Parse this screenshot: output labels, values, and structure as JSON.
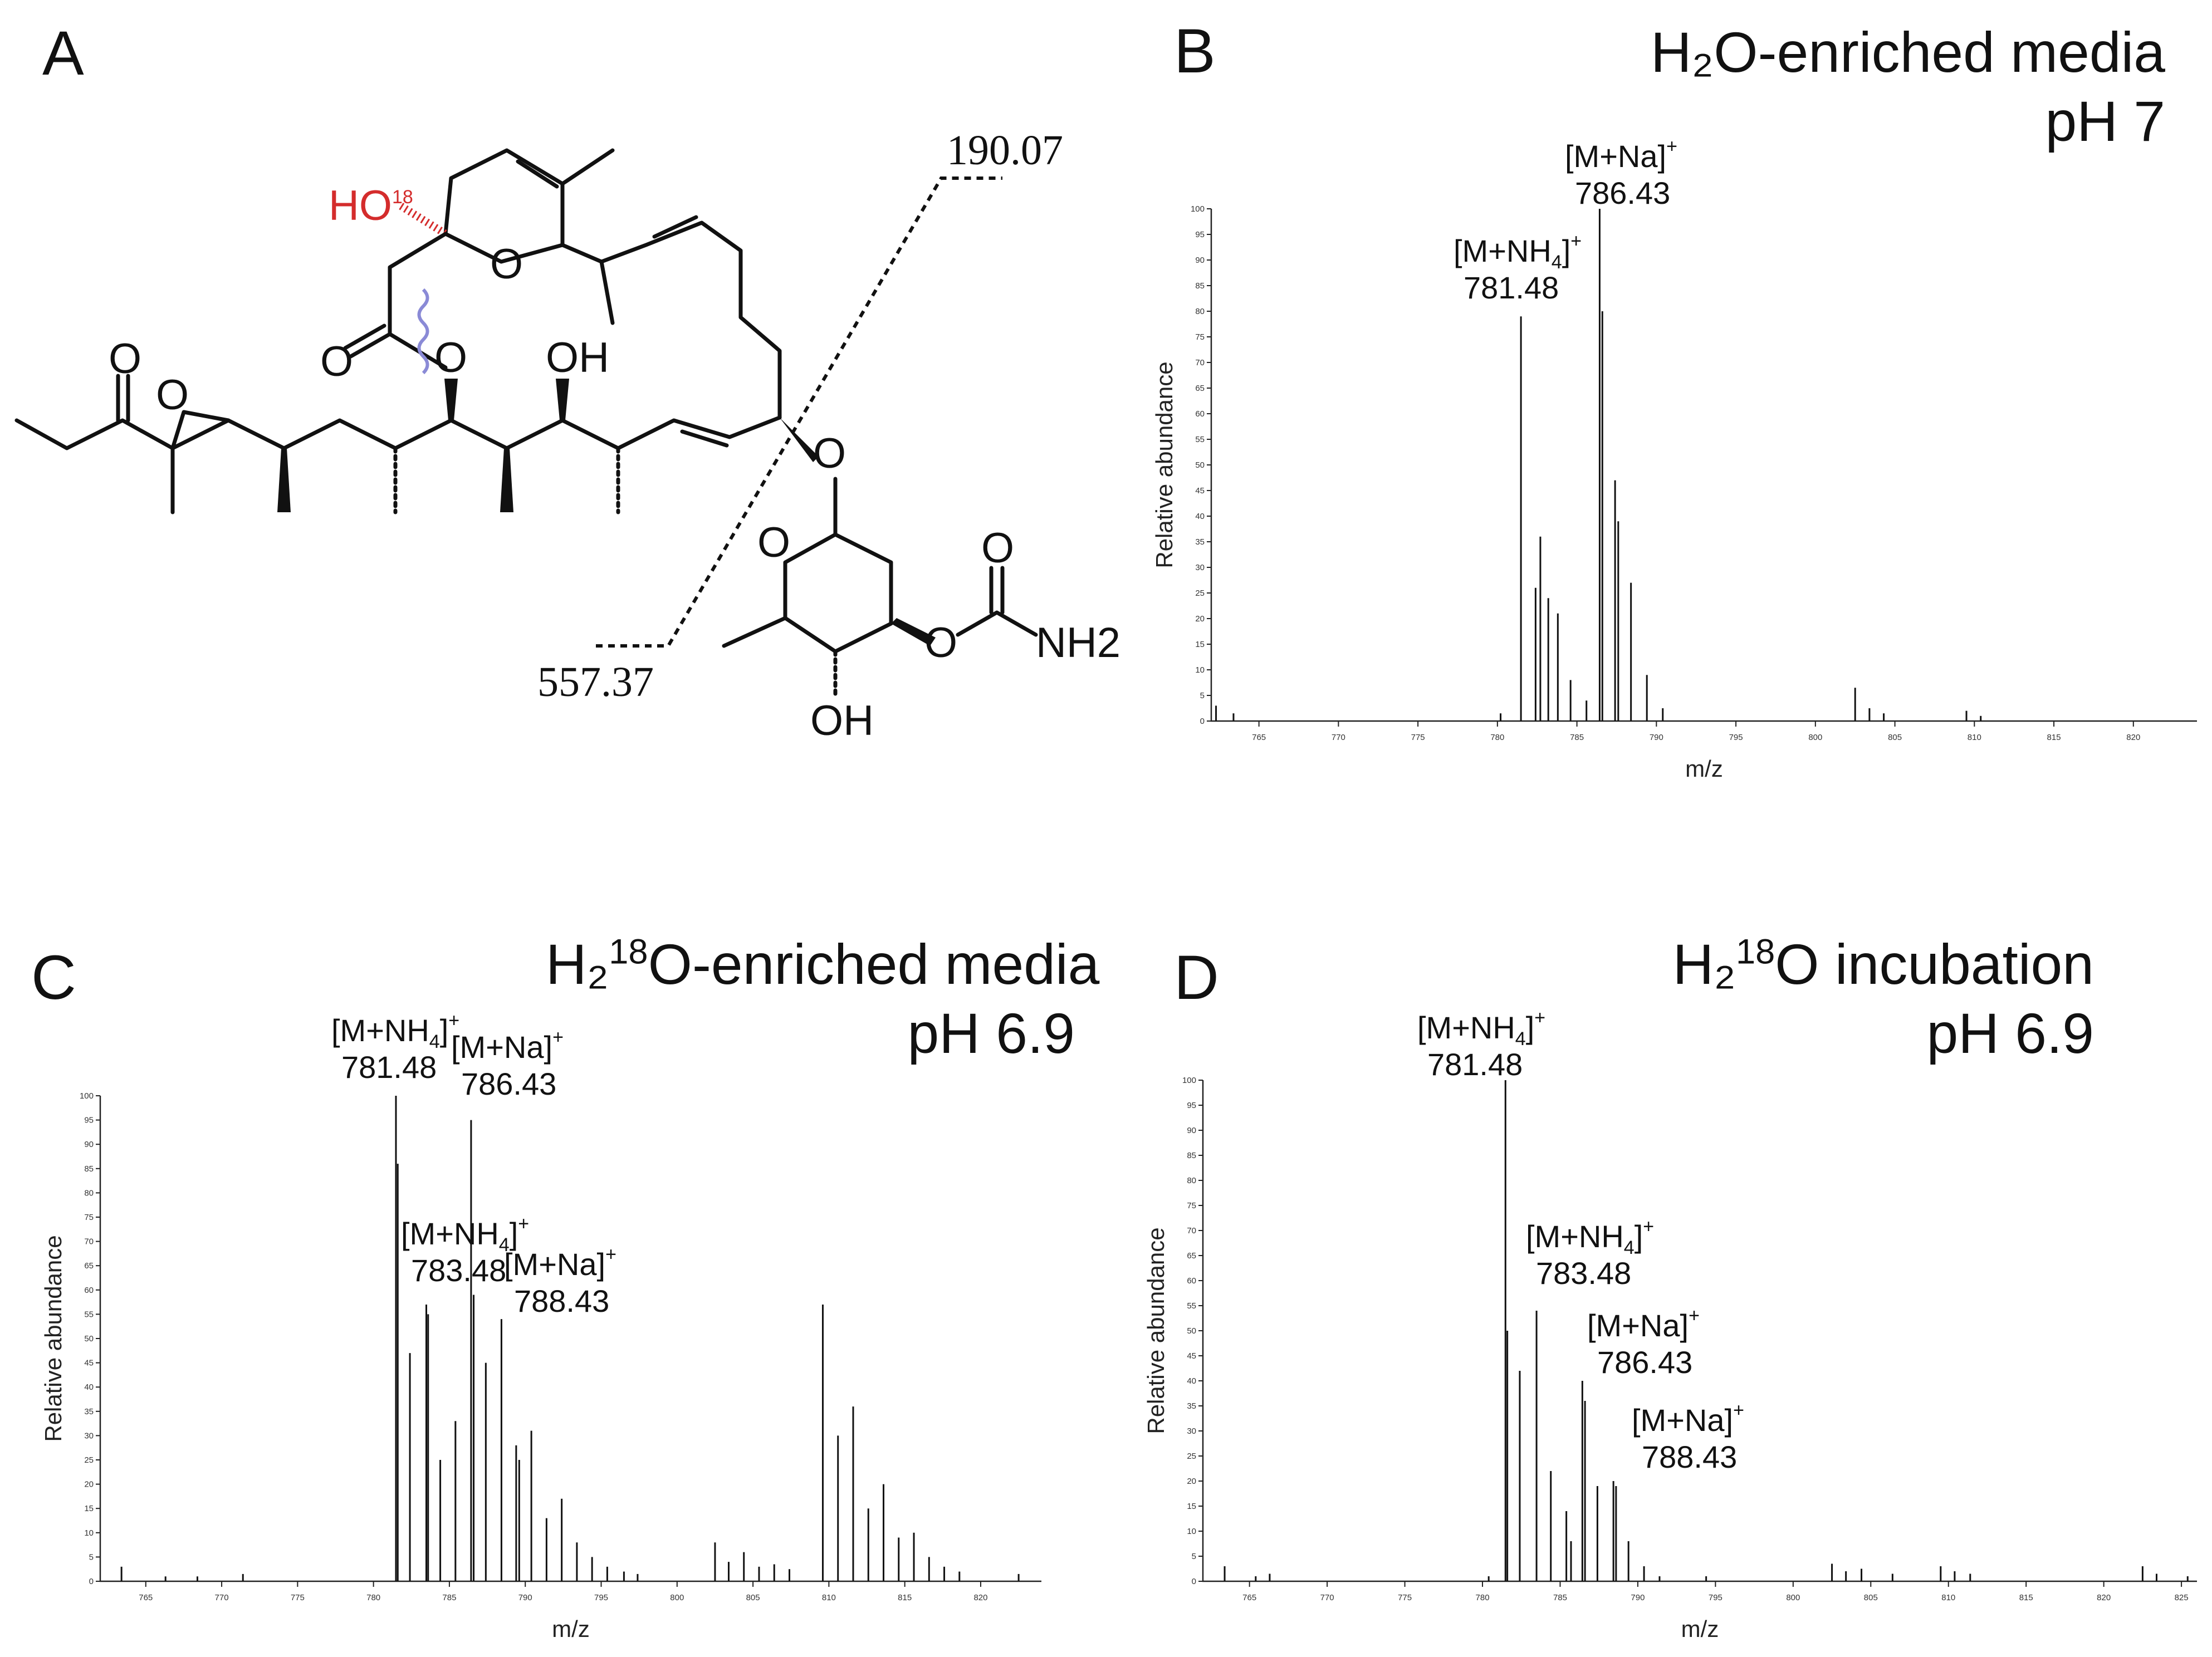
{
  "panels": [
    {
      "id": "A",
      "letter": "A"
    },
    {
      "id": "B",
      "letter": "B",
      "title_line1": "H₂O-enriched media",
      "title_line2": "pH 7"
    },
    {
      "id": "C",
      "letter": "C",
      "title_line1_pre": "H₂",
      "title_line1_sup": "18",
      "title_line1_post": "O-enriched media",
      "title_line2": "pH 6.9"
    },
    {
      "id": "D",
      "letter": "D",
      "title_line1_pre": "H₂",
      "title_line1_sup": "18",
      "title_line1_post": "O incubation",
      "title_line2": "pH 6.9"
    }
  ],
  "structure": {
    "labels": {
      "ho18_main": "HO",
      "ho18_sup": "18",
      "ring_O": "O",
      "carbonyl_O1": "O",
      "carbonyl_O2": "O",
      "ester_O": "O",
      "epoxide_O": "O",
      "OH_mid": "OH",
      "glyc_O": "O",
      "sugar_ring_O": "O",
      "OH_sugar": "OH",
      "carbamate_O1": "O",
      "carbamate_O2": "O",
      "NH2": "NH2"
    },
    "fragments": {
      "upper": "190.07",
      "lower": "557.37"
    }
  },
  "chart_data": [
    {
      "panel": "B",
      "type": "bar",
      "xlabel": "m/z",
      "ylabel": "Relative abundance",
      "xlim": [
        762,
        824
      ],
      "ylim": [
        0,
        100
      ],
      "xticks": [
        765,
        770,
        775,
        780,
        785,
        790,
        795,
        800,
        805,
        810,
        815,
        820
      ],
      "yticks": [
        0,
        5,
        10,
        15,
        20,
        25,
        30,
        35,
        40,
        45,
        50,
        55,
        60,
        65,
        70,
        75,
        80,
        85,
        90,
        95,
        100
      ],
      "peaks": [
        [
          762.3,
          3
        ],
        [
          763.4,
          1.5
        ],
        [
          780.2,
          1.5
        ],
        [
          781.48,
          79
        ],
        [
          782.4,
          26
        ],
        [
          782.7,
          36
        ],
        [
          783.2,
          24
        ],
        [
          783.8,
          21
        ],
        [
          784.6,
          8
        ],
        [
          785.6,
          4
        ],
        [
          786.43,
          100
        ],
        [
          786.6,
          80
        ],
        [
          787.4,
          47
        ],
        [
          787.6,
          39
        ],
        [
          788.4,
          27
        ],
        [
          789.4,
          9
        ],
        [
          790.4,
          2.5
        ],
        [
          802.5,
          6.5
        ],
        [
          803.4,
          2.5
        ],
        [
          804.3,
          1.5
        ],
        [
          809.5,
          2
        ],
        [
          810.4,
          1
        ]
      ],
      "annotations": [
        {
          "ion": "[M+NH",
          "sub": "4",
          "close": "]",
          "charge": "+",
          "mz": "781.48"
        },
        {
          "ion": "[M+Na]",
          "sub": "",
          "close": "",
          "charge": "+",
          "mz": "786.43"
        }
      ]
    },
    {
      "panel": "C",
      "type": "bar",
      "xlabel": "m/z",
      "ylabel": "Relative abundance",
      "xlim": [
        762,
        824
      ],
      "ylim": [
        0,
        100
      ],
      "xticks": [
        765,
        770,
        775,
        780,
        785,
        790,
        795,
        800,
        805,
        810,
        815,
        820
      ],
      "yticks": [
        0,
        5,
        10,
        15,
        20,
        25,
        30,
        35,
        40,
        45,
        50,
        55,
        60,
        65,
        70,
        75,
        80,
        85,
        90,
        95,
        100
      ],
      "peaks": [
        [
          763.4,
          3
        ],
        [
          766.3,
          1
        ],
        [
          768.4,
          1
        ],
        [
          771.4,
          1.5
        ],
        [
          781.48,
          100
        ],
        [
          781.6,
          86
        ],
        [
          782.4,
          47
        ],
        [
          783.48,
          57
        ],
        [
          783.6,
          55
        ],
        [
          784.4,
          25
        ],
        [
          785.4,
          33
        ],
        [
          786.43,
          95
        ],
        [
          786.6,
          59
        ],
        [
          787.4,
          45
        ],
        [
          788.43,
          54
        ],
        [
          789.4,
          28
        ],
        [
          789.6,
          25
        ],
        [
          790.4,
          31
        ],
        [
          791.4,
          13
        ],
        [
          792.4,
          17
        ],
        [
          793.4,
          8
        ],
        [
          794.4,
          5
        ],
        [
          795.4,
          3
        ],
        [
          796.5,
          2
        ],
        [
          797.4,
          1.5
        ],
        [
          802.5,
          8
        ],
        [
          803.4,
          4
        ],
        [
          804.4,
          6
        ],
        [
          805.4,
          3
        ],
        [
          806.4,
          3.5
        ],
        [
          807.4,
          2.5
        ],
        [
          809.6,
          57
        ],
        [
          810.6,
          30
        ],
        [
          811.6,
          36
        ],
        [
          812.6,
          15
        ],
        [
          813.6,
          20
        ],
        [
          814.6,
          9
        ],
        [
          815.6,
          10
        ],
        [
          816.6,
          5
        ],
        [
          817.6,
          3
        ],
        [
          818.6,
          2
        ],
        [
          822.5,
          1.5
        ]
      ],
      "annotations": [
        {
          "ion": "[M+NH",
          "sub": "4",
          "close": "]",
          "charge": "+",
          "mz": "781.48"
        },
        {
          "ion": "[M+Na]",
          "sub": "",
          "close": "",
          "charge": "+",
          "mz": "786.43"
        },
        {
          "ion": "[M+NH",
          "sub": "4",
          "close": "]",
          "charge": "+",
          "mz": "783.48"
        },
        {
          "ion": "[M+Na]",
          "sub": "",
          "close": "",
          "charge": "+",
          "mz": "788.43"
        }
      ]
    },
    {
      "panel": "D",
      "type": "bar",
      "xlabel": "m/z",
      "ylabel": "Relative abundance",
      "xlim": [
        762,
        826
      ],
      "ylim": [
        0,
        100
      ],
      "xticks": [
        765,
        770,
        775,
        780,
        785,
        790,
        795,
        800,
        805,
        810,
        815,
        820,
        825
      ],
      "yticks": [
        0,
        5,
        10,
        15,
        20,
        25,
        30,
        35,
        40,
        45,
        50,
        55,
        60,
        65,
        70,
        75,
        80,
        85,
        90,
        95,
        100
      ],
      "peaks": [
        [
          763.4,
          3
        ],
        [
          765.4,
          1
        ],
        [
          766.3,
          1.5
        ],
        [
          780.4,
          1
        ],
        [
          781.48,
          100
        ],
        [
          781.6,
          50
        ],
        [
          782.4,
          42
        ],
        [
          783.48,
          54
        ],
        [
          784.4,
          22
        ],
        [
          785.4,
          14
        ],
        [
          785.7,
          8
        ],
        [
          786.43,
          40
        ],
        [
          786.6,
          36
        ],
        [
          787.4,
          19
        ],
        [
          788.43,
          20
        ],
        [
          788.6,
          19
        ],
        [
          789.4,
          8
        ],
        [
          790.4,
          3
        ],
        [
          791.4,
          1
        ],
        [
          794.4,
          1
        ],
        [
          802.5,
          3.5
        ],
        [
          803.4,
          2
        ],
        [
          804.4,
          2.5
        ],
        [
          806.4,
          1.5
        ],
        [
          809.5,
          3
        ],
        [
          810.4,
          2
        ],
        [
          811.4,
          1.5
        ],
        [
          822.5,
          3
        ],
        [
          823.4,
          1.5
        ],
        [
          825.4,
          1
        ]
      ],
      "annotations": [
        {
          "ion": "[M+NH",
          "sub": "4",
          "close": "]",
          "charge": "+",
          "mz": "781.48"
        },
        {
          "ion": "[M+NH",
          "sub": "4",
          "close": "]",
          "charge": "+",
          "mz": "783.48"
        },
        {
          "ion": "[M+Na]",
          "sub": "",
          "close": "",
          "charge": "+",
          "mz": "786.43"
        },
        {
          "ion": "[M+Na]",
          "sub": "",
          "close": "",
          "charge": "+",
          "mz": "788.43"
        }
      ]
    }
  ]
}
